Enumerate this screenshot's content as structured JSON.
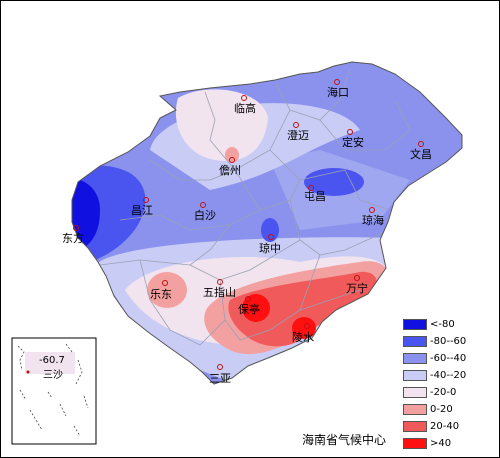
{
  "map": {
    "cities": [
      {
        "name": "海口"
      },
      {
        "name": "临高"
      },
      {
        "name": "澄迈"
      },
      {
        "name": "定安"
      },
      {
        "name": "文昌"
      },
      {
        "name": "儋州"
      },
      {
        "name": "屯昌"
      },
      {
        "name": "昌江"
      },
      {
        "name": "白沙"
      },
      {
        "name": "琼海"
      },
      {
        "name": "东方"
      },
      {
        "name": "琼中"
      },
      {
        "name": "乐东"
      },
      {
        "name": "五指山"
      },
      {
        "name": "万宁"
      },
      {
        "name": "保亭"
      },
      {
        "name": "陵水"
      },
      {
        "name": "三亚"
      }
    ]
  },
  "inset": {
    "value": "-60.7",
    "label": "三沙"
  },
  "legend": [
    {
      "label": "<-80",
      "color": "#1010e0"
    },
    {
      "label": "-80--60",
      "color": "#4a55f0"
    },
    {
      "label": "-60--40",
      "color": "#8a92ee"
    },
    {
      "label": "-40--20",
      "color": "#c9cdf6"
    },
    {
      "label": "-20-0",
      "color": "#f2e4ee"
    },
    {
      "label": "0-20",
      "color": "#f3a0a0"
    },
    {
      "label": "20-40",
      "color": "#f05a5a"
    },
    {
      "label": ">40",
      "color": "#ff1010"
    }
  ],
  "credit": "海南省气候中心"
}
